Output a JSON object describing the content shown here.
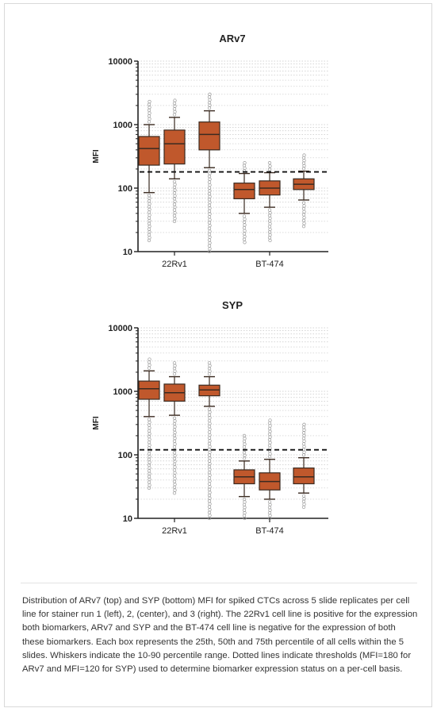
{
  "chart_data": [
    {
      "type": "box",
      "title": "ARv7",
      "ylabel": "MFI",
      "yscale": "log",
      "ylim": [
        10,
        10000
      ],
      "yticks": [
        "10",
        "100",
        "1000",
        "10000"
      ],
      "categories": [
        "22Rv1",
        "BT-474"
      ],
      "threshold": 180,
      "series": [
        {
          "values": [
            {
              "category": "22Rv1",
              "p10": 85,
              "q1": 230,
              "median": 420,
              "q3": 650,
              "p90": 1000,
              "min": 15,
              "max": 2300
            },
            {
              "category": "BT-474",
              "p10": 40,
              "q1": 68,
              "median": 95,
              "q3": 120,
              "p90": 170,
              "min": 14,
              "max": 250
            }
          ]
        },
        {
          "values": [
            {
              "category": "22Rv1",
              "p10": 140,
              "q1": 240,
              "median": 500,
              "q3": 820,
              "p90": 1300,
              "min": 30,
              "max": 2400
            },
            {
              "category": "BT-474",
              "p10": 50,
              "q1": 78,
              "median": 100,
              "q3": 130,
              "p90": 175,
              "min": 15,
              "max": 250
            }
          ]
        },
        {
          "values": [
            {
              "category": "22Rv1",
              "p10": 210,
              "q1": 400,
              "median": 700,
              "q3": 1100,
              "p90": 1650,
              "min": 10,
              "max": 3000
            },
            {
              "category": "BT-474",
              "p10": 65,
              "q1": 95,
              "median": 115,
              "q3": 140,
              "p90": 185,
              "min": 25,
              "max": 330
            }
          ]
        }
      ]
    },
    {
      "type": "box",
      "title": "SYP",
      "ylabel": "MFI",
      "yscale": "log",
      "ylim": [
        10,
        10000
      ],
      "yticks": [
        "10",
        "100",
        "1000",
        "10000"
      ],
      "categories": [
        "22Rv1",
        "BT-474"
      ],
      "threshold": 120,
      "series": [
        {
          "values": [
            {
              "category": "22Rv1",
              "p10": 400,
              "q1": 750,
              "median": 1100,
              "q3": 1450,
              "p90": 2100,
              "min": 30,
              "max": 3200
            },
            {
              "category": "BT-474",
              "p10": 22,
              "q1": 35,
              "median": 45,
              "q3": 58,
              "p90": 80,
              "min": 10,
              "max": 200
            }
          ]
        },
        {
          "values": [
            {
              "category": "22Rv1",
              "p10": 420,
              "q1": 700,
              "median": 950,
              "q3": 1300,
              "p90": 1700,
              "min": 25,
              "max": 2800
            },
            {
              "category": "BT-474",
              "p10": 20,
              "q1": 28,
              "median": 38,
              "q3": 52,
              "p90": 85,
              "min": 10,
              "max": 350
            }
          ]
        },
        {
          "values": [
            {
              "category": "22Rv1",
              "p10": 580,
              "q1": 850,
              "median": 1050,
              "q3": 1250,
              "p90": 1700,
              "min": 10,
              "max": 2800
            },
            {
              "category": "BT-474",
              "p10": 25,
              "q1": 35,
              "median": 45,
              "q3": 62,
              "p90": 90,
              "min": 15,
              "max": 300
            }
          ]
        }
      ]
    }
  ],
  "style": {
    "box_fill": "#c0582c",
    "box_stroke": "#3a2a20",
    "outlier": "#9a9a9a",
    "threshold": "#111111"
  },
  "caption": "Distribution of ARv7 (top) and SYP (bottom) MFI for spiked CTCs across 5 slide replicates per cell line for stainer run 1 (left), 2, (center), and 3 (right). The 22Rv1 cell line is positive for the expression both biomarkers, ARv7 and SYP and the BT-474 cell line is negative for the expression of both these biomarkers. Each box represents the 25th, 50th and 75th percentile of all cells within the 5 slides. Whiskers indicate the 10-90 percentile range. Dotted lines indicate thresholds (MFI=180 for ARv7 and MFI=120 for SYP) used to determine biomarker expression status on a per-cell basis."
}
